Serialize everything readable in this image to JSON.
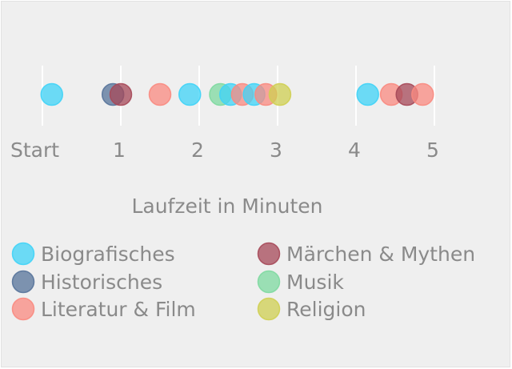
{
  "chart_data": {
    "type": "scatter",
    "xlabel": "Laufzeit in Minuten",
    "xlim": [
      0,
      5
    ],
    "x_ticks": [
      {
        "value": 0,
        "label": "Start"
      },
      {
        "value": 1,
        "label": "1"
      },
      {
        "value": 2,
        "label": "2"
      },
      {
        "value": 3,
        "label": "3"
      },
      {
        "value": 4,
        "label": "4"
      },
      {
        "value": 5,
        "label": "5"
      }
    ],
    "grid": true,
    "legend_position": "bottom",
    "series": [
      {
        "name": "Biografisches",
        "color": "#3fd3f7",
        "x": [
          0.12,
          1.88,
          2.4,
          2.7,
          4.15
        ]
      },
      {
        "name": "Historisches",
        "color": "#56739a",
        "x": [
          0.9
        ]
      },
      {
        "name": "Literatur & Film",
        "color": "#f98a80",
        "x": [
          1.5,
          2.55,
          2.85,
          4.45,
          4.85
        ]
      },
      {
        "name": "Märchen & Mythen",
        "color": "#a64858",
        "x": [
          1.0,
          4.65
        ]
      },
      {
        "name": "Musik",
        "color": "#7ed9a0",
        "x": [
          2.27
        ]
      },
      {
        "name": "Religion",
        "color": "#cfcf52",
        "x": [
          3.03
        ]
      }
    ],
    "draw_order": [
      {
        "series": 0,
        "point": 0
      },
      {
        "series": 1,
        "point": 0
      },
      {
        "series": 3,
        "point": 0
      },
      {
        "series": 2,
        "point": 0
      },
      {
        "series": 0,
        "point": 1
      },
      {
        "series": 4,
        "point": 0
      },
      {
        "series": 0,
        "point": 2
      },
      {
        "series": 2,
        "point": 1
      },
      {
        "series": 0,
        "point": 3
      },
      {
        "series": 2,
        "point": 2
      },
      {
        "series": 5,
        "point": 0
      },
      {
        "series": 0,
        "point": 4
      },
      {
        "series": 2,
        "point": 3
      },
      {
        "series": 3,
        "point": 1
      },
      {
        "series": 2,
        "point": 4
      }
    ],
    "legend_order": [
      0,
      3,
      1,
      4,
      2,
      5
    ]
  }
}
